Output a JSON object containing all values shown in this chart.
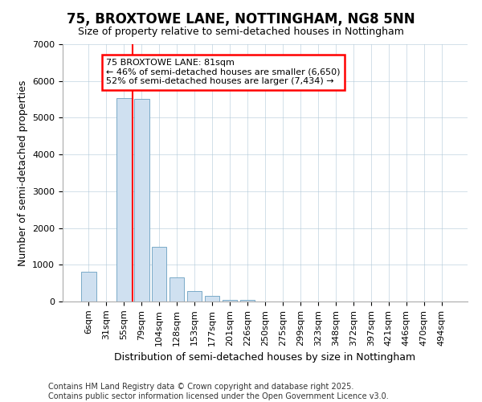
{
  "title": "75, BROXTOWE LANE, NOTTINGHAM, NG8 5NN",
  "subtitle": "Size of property relative to semi-detached houses in Nottingham",
  "xlabel": "Distribution of semi-detached houses by size in Nottingham",
  "ylabel": "Number of semi-detached properties",
  "categories": [
    "6sqm",
    "31sqm",
    "55sqm",
    "79sqm",
    "104sqm",
    "128sqm",
    "153sqm",
    "177sqm",
    "201sqm",
    "226sqm",
    "250sqm",
    "275sqm",
    "299sqm",
    "323sqm",
    "348sqm",
    "372sqm",
    "397sqm",
    "421sqm",
    "446sqm",
    "470sqm",
    "494sqm"
  ],
  "values": [
    800,
    0,
    5530,
    5520,
    1480,
    650,
    280,
    150,
    50,
    50,
    0,
    0,
    0,
    0,
    0,
    0,
    0,
    0,
    0,
    0,
    0
  ],
  "bar_color": "#cfe0f0",
  "bar_edge_color": "#7aaac8",
  "red_line_x": 3,
  "annotation_line1": "75 BROXTOWE LANE: 81sqm",
  "annotation_line2": "← 46% of semi-detached houses are smaller (6,650)",
  "annotation_line3": "52% of semi-detached houses are larger (7,434) →",
  "annotation_box_color": "white",
  "annotation_box_edge_color": "red",
  "red_line_color": "red",
  "ylim": [
    0,
    7000
  ],
  "yticks": [
    0,
    1000,
    2000,
    3000,
    4000,
    5000,
    6000,
    7000
  ],
  "footer": "Contains HM Land Registry data © Crown copyright and database right 2025.\nContains public sector information licensed under the Open Government Licence v3.0.",
  "bg_color": "#ffffff",
  "grid_color": "#b0c8d8",
  "title_fontsize": 12,
  "subtitle_fontsize": 9,
  "axis_label_fontsize": 9,
  "tick_fontsize": 8,
  "footer_fontsize": 7
}
